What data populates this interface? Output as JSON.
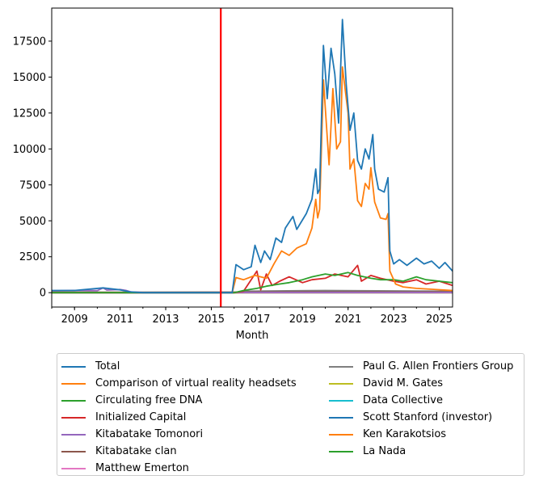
{
  "chart_data": {
    "type": "line",
    "title": "",
    "xlabel": "Month",
    "ylabel": "",
    "xlim": [
      "2008-01",
      "2025-08"
    ],
    "ylim": [
      -1000,
      19800
    ],
    "x_ticks": [
      "2009",
      "2011",
      "2013",
      "2015",
      "2017",
      "2019",
      "2021",
      "2023",
      "2025"
    ],
    "y_ticks": [
      "0",
      "2500",
      "5000",
      "7500",
      "10000",
      "12500",
      "15000",
      "17500"
    ],
    "y_tick_values": [
      0,
      2500,
      5000,
      7500,
      10000,
      12500,
      15000,
      17500
    ],
    "marker_line": {
      "x": "2015-06",
      "color": "#ff0000"
    },
    "grid": false,
    "legend_position": "below the plot, two columns",
    "series": [
      {
        "name": "Total",
        "color": "#1f77b4",
        "points": [
          [
            "2008-01",
            150
          ],
          [
            "2009-01",
            150
          ],
          [
            "2010-04",
            330
          ],
          [
            "2011-01",
            200
          ],
          [
            "2011-06",
            60
          ],
          [
            "2012-01",
            0
          ],
          [
            "2015-12",
            0
          ],
          [
            "2016-02",
            1950
          ],
          [
            "2016-06",
            1600
          ],
          [
            "2016-10",
            1800
          ],
          [
            "2016-12",
            3300
          ],
          [
            "2017-03",
            2100
          ],
          [
            "2017-05",
            2900
          ],
          [
            "2017-08",
            2300
          ],
          [
            "2017-11",
            3800
          ],
          [
            "2018-02",
            3500
          ],
          [
            "2018-04",
            4500
          ],
          [
            "2018-08",
            5300
          ],
          [
            "2018-10",
            4400
          ],
          [
            "2019-03",
            5500
          ],
          [
            "2019-06",
            6500
          ],
          [
            "2019-08",
            8600
          ],
          [
            "2019-09",
            6900
          ],
          [
            "2019-10",
            7200
          ],
          [
            "2019-12",
            17200
          ],
          [
            "2020-02",
            13500
          ],
          [
            "2020-04",
            17000
          ],
          [
            "2020-06",
            15200
          ],
          [
            "2020-08",
            11800
          ],
          [
            "2020-10",
            19000
          ],
          [
            "2020-12",
            14500
          ],
          [
            "2021-02",
            11300
          ],
          [
            "2021-04",
            12500
          ],
          [
            "2021-06",
            9200
          ],
          [
            "2021-08",
            8600
          ],
          [
            "2021-10",
            10000
          ],
          [
            "2021-12",
            9300
          ],
          [
            "2022-02",
            11000
          ],
          [
            "2022-03",
            8600
          ],
          [
            "2022-05",
            7200
          ],
          [
            "2022-08",
            7000
          ],
          [
            "2022-10",
            8000
          ],
          [
            "2022-11",
            2900
          ],
          [
            "2023-01",
            2000
          ],
          [
            "2023-04",
            2300
          ],
          [
            "2023-08",
            1900
          ],
          [
            "2024-01",
            2400
          ],
          [
            "2024-05",
            2000
          ],
          [
            "2024-09",
            2200
          ],
          [
            "2025-01",
            1700
          ],
          [
            "2025-04",
            2100
          ],
          [
            "2025-08",
            1500
          ]
        ]
      },
      {
        "name": "Comparison of virtual reality headsets",
        "color": "#ff7f0e",
        "points": [
          [
            "2015-12",
            0
          ],
          [
            "2016-02",
            1050
          ],
          [
            "2016-06",
            900
          ],
          [
            "2016-12",
            1200
          ],
          [
            "2017-06",
            1000
          ],
          [
            "2017-10",
            2000
          ],
          [
            "2018-02",
            2900
          ],
          [
            "2018-06",
            2600
          ],
          [
            "2018-10",
            3100
          ],
          [
            "2019-03",
            3400
          ],
          [
            "2019-06",
            4500
          ],
          [
            "2019-08",
            6500
          ],
          [
            "2019-09",
            5200
          ],
          [
            "2019-10",
            5800
          ],
          [
            "2019-12",
            14800
          ],
          [
            "2020-03",
            8900
          ],
          [
            "2020-05",
            14200
          ],
          [
            "2020-07",
            10000
          ],
          [
            "2020-09",
            10500
          ],
          [
            "2020-10",
            15700
          ],
          [
            "2021-01",
            12500
          ],
          [
            "2021-02",
            8600
          ],
          [
            "2021-04",
            9300
          ],
          [
            "2021-06",
            6400
          ],
          [
            "2021-08",
            6000
          ],
          [
            "2021-10",
            7600
          ],
          [
            "2021-12",
            7200
          ],
          [
            "2022-01",
            8700
          ],
          [
            "2022-03",
            6300
          ],
          [
            "2022-06",
            5200
          ],
          [
            "2022-09",
            5100
          ],
          [
            "2022-10",
            5500
          ],
          [
            "2022-11",
            1500
          ],
          [
            "2023-02",
            600
          ],
          [
            "2023-06",
            400
          ],
          [
            "2024-01",
            300
          ],
          [
            "2025-08",
            150
          ]
        ]
      },
      {
        "name": "Circulating free DNA",
        "color": "#2ca02c",
        "points": [
          [
            "2008-01",
            0
          ],
          [
            "2016-01",
            0
          ],
          [
            "2016-06",
            150
          ],
          [
            "2017-01",
            300
          ],
          [
            "2017-06",
            450
          ],
          [
            "2018-01",
            600
          ],
          [
            "2018-06",
            700
          ],
          [
            "2019-01",
            900
          ],
          [
            "2019-06",
            1100
          ],
          [
            "2020-01",
            1300
          ],
          [
            "2020-06",
            1200
          ],
          [
            "2021-01",
            1400
          ],
          [
            "2021-06",
            1200
          ],
          [
            "2022-01",
            1000
          ],
          [
            "2022-06",
            900
          ],
          [
            "2023-01",
            900
          ],
          [
            "2023-06",
            800
          ],
          [
            "2024-01",
            1100
          ],
          [
            "2024-06",
            900
          ],
          [
            "2025-01",
            800
          ],
          [
            "2025-08",
            700
          ]
        ]
      },
      {
        "name": "Initialized Capital",
        "color": "#d62728",
        "points": [
          [
            "2008-01",
            0
          ],
          [
            "2016-01",
            0
          ],
          [
            "2016-06",
            100
          ],
          [
            "2017-01",
            1500
          ],
          [
            "2017-03",
            200
          ],
          [
            "2017-06",
            1300
          ],
          [
            "2017-09",
            500
          ],
          [
            "2018-01",
            800
          ],
          [
            "2018-06",
            1100
          ],
          [
            "2019-01",
            700
          ],
          [
            "2019-06",
            900
          ],
          [
            "2020-01",
            1000
          ],
          [
            "2020-06",
            1300
          ],
          [
            "2021-01",
            1100
          ],
          [
            "2021-06",
            1900
          ],
          [
            "2021-08",
            800
          ],
          [
            "2022-01",
            1200
          ],
          [
            "2022-06",
            1000
          ],
          [
            "2023-01",
            800
          ],
          [
            "2023-06",
            700
          ],
          [
            "2024-01",
            900
          ],
          [
            "2024-06",
            600
          ],
          [
            "2025-01",
            800
          ],
          [
            "2025-08",
            500
          ]
        ]
      },
      {
        "name": "Kitabatake Tomonori",
        "color": "#9467bd",
        "points": [
          [
            "2008-01",
            130
          ],
          [
            "2009-01",
            160
          ],
          [
            "2010-01",
            140
          ],
          [
            "2010-04",
            330
          ],
          [
            "2010-06",
            180
          ],
          [
            "2011-01",
            220
          ],
          [
            "2011-04",
            160
          ],
          [
            "2011-07",
            40
          ],
          [
            "2012-01",
            20
          ],
          [
            "2025-08",
            20
          ]
        ]
      },
      {
        "name": "Kitabatake clan",
        "color": "#8c564b",
        "points": [
          [
            "2008-01",
            40
          ],
          [
            "2012-01",
            30
          ],
          [
            "2016-01",
            40
          ],
          [
            "2020-01",
            60
          ],
          [
            "2025-08",
            50
          ]
        ]
      },
      {
        "name": "Matthew Emerton",
        "color": "#e377c2",
        "points": [
          [
            "2008-01",
            0
          ],
          [
            "2025-08",
            0
          ]
        ]
      },
      {
        "name": "Paul G. Allen Frontiers Group",
        "color": "#7f7f7f",
        "points": [
          [
            "2008-01",
            0
          ],
          [
            "2016-01",
            0
          ],
          [
            "2016-06",
            100
          ],
          [
            "2020-01",
            150
          ],
          [
            "2025-08",
            100
          ]
        ]
      },
      {
        "name": "David M. Gates",
        "color": "#bcbd22",
        "points": [
          [
            "2008-01",
            0
          ],
          [
            "2025-08",
            0
          ]
        ]
      },
      {
        "name": "Data Collective",
        "color": "#17becf",
        "points": [
          [
            "2008-01",
            0
          ],
          [
            "2016-01",
            0
          ],
          [
            "2016-06",
            60
          ],
          [
            "2020-01",
            80
          ],
          [
            "2025-08",
            40
          ]
        ]
      },
      {
        "name": "Scott Stanford (investor)",
        "color": "#1f77b4",
        "points": [
          [
            "2008-01",
            0
          ],
          [
            "2025-08",
            0
          ]
        ]
      },
      {
        "name": "Ken Karakotsios",
        "color": "#ff7f0e",
        "points": [
          [
            "2008-01",
            0
          ],
          [
            "2025-08",
            0
          ]
        ]
      },
      {
        "name": "La Nada",
        "color": "#2ca02c",
        "points": [
          [
            "2008-01",
            0
          ],
          [
            "2025-08",
            0
          ]
        ]
      }
    ]
  }
}
